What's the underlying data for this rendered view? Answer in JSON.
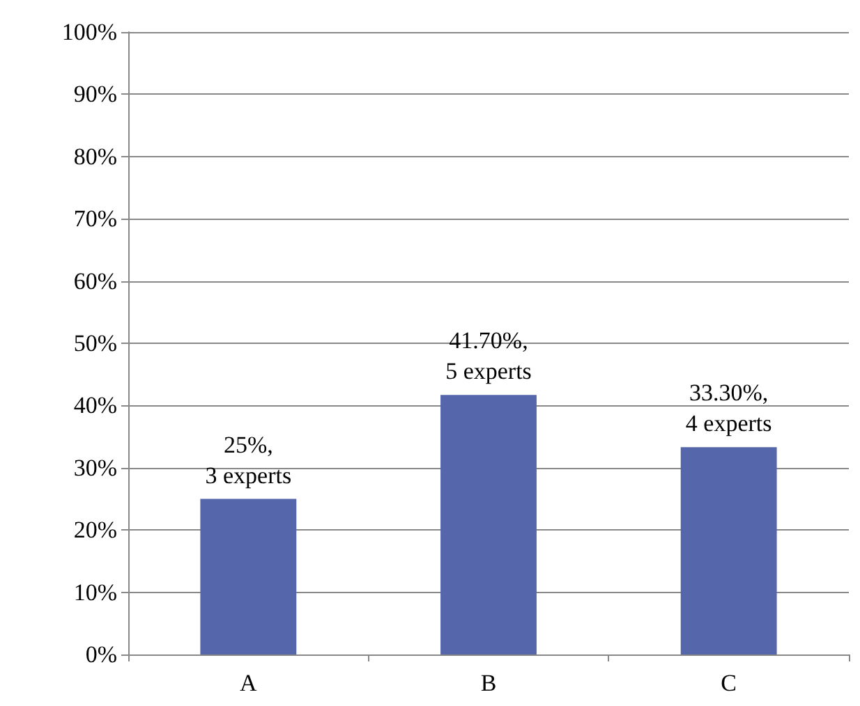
{
  "chart_data": {
    "type": "bar",
    "categories": [
      "A",
      "B",
      "C"
    ],
    "values": [
      25,
      41.7,
      33.3
    ],
    "color": "#5566aa",
    "value_labels": [
      "25%,\n3 experts",
      "41.70%,\n5 experts",
      "33.30%,\n4 experts"
    ],
    "ylim": [
      0,
      100
    ],
    "yticks": [
      {
        "value": 0,
        "label": "0%"
      },
      {
        "value": 10,
        "label": "10%"
      },
      {
        "value": 20,
        "label": "20%"
      },
      {
        "value": 30,
        "label": "30%"
      },
      {
        "value": 40,
        "label": "40%"
      },
      {
        "value": 50,
        "label": "50%"
      },
      {
        "value": 60,
        "label": "60%"
      },
      {
        "value": 70,
        "label": "70%"
      },
      {
        "value": 80,
        "label": "80%"
      },
      {
        "value": 90,
        "label": "90%"
      },
      {
        "value": 100,
        "label": "100%"
      }
    ],
    "grid": "y"
  }
}
